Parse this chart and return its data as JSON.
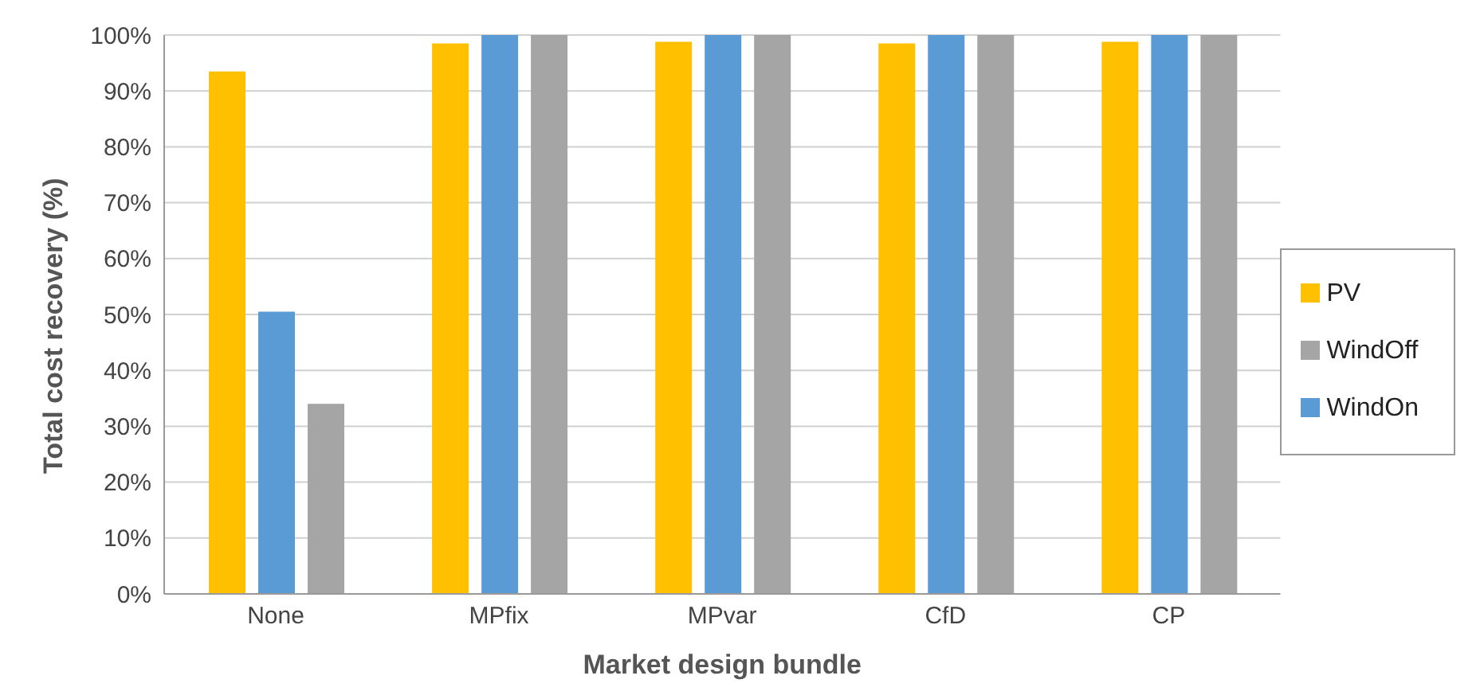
{
  "chart_data": {
    "type": "bar",
    "xlabel": "Market design bundle",
    "ylabel": "Total cost  recovery (%)",
    "categories": [
      "None",
      "MPfix",
      "MPvar",
      "CfD",
      "CP"
    ],
    "series": [
      {
        "name": "PV",
        "color": "#ffc000",
        "values": [
          93.5,
          98.5,
          98.8,
          98.5,
          98.8
        ]
      },
      {
        "name": "WindOn",
        "color": "#5b9bd5",
        "values": [
          50.5,
          100,
          100,
          100,
          100
        ]
      },
      {
        "name": "WindOff",
        "color": "#a5a5a5",
        "values": [
          34,
          100,
          100,
          100,
          100
        ]
      }
    ],
    "ylim": [
      0,
      100
    ],
    "yticks": [
      {
        "value": 0,
        "label": "0%"
      },
      {
        "value": 10,
        "label": "10%"
      },
      {
        "value": 20,
        "label": "20%"
      },
      {
        "value": 30,
        "label": "30%"
      },
      {
        "value": 40,
        "label": "40%"
      },
      {
        "value": 50,
        "label": "50%"
      },
      {
        "value": 60,
        "label": "60%"
      },
      {
        "value": 70,
        "label": "70%"
      },
      {
        "value": 80,
        "label": "80%"
      },
      {
        "value": 90,
        "label": "90%"
      },
      {
        "value": 100,
        "label": "100%"
      }
    ],
    "grid": "y",
    "legend": "right"
  }
}
